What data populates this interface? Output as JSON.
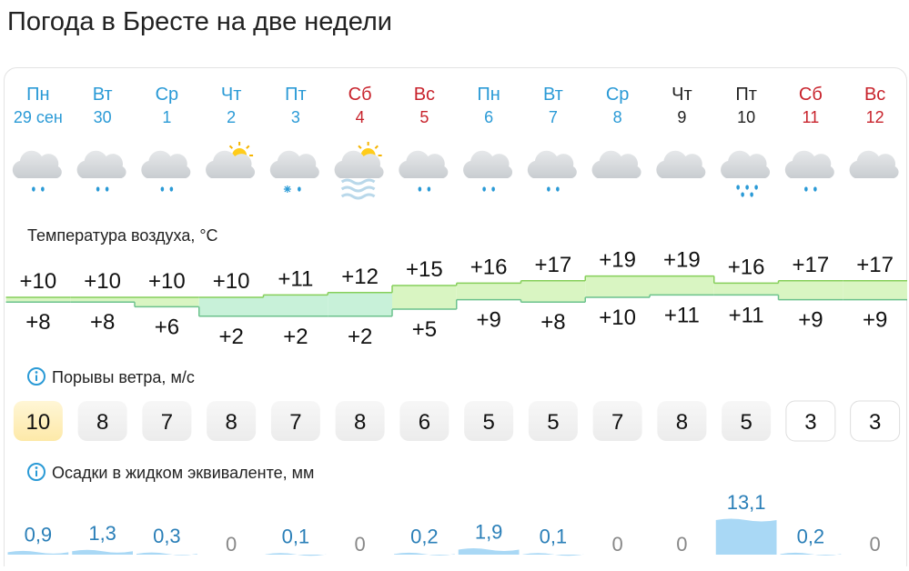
{
  "title": "Погода в Бресте на две недели",
  "days": [
    {
      "weekday": "Пн",
      "date": "29 сен",
      "color": "#2a9ad6"
    },
    {
      "weekday": "Вт",
      "date": "30",
      "color": "#2a9ad6"
    },
    {
      "weekday": "Ср",
      "date": "1",
      "color": "#2a9ad6"
    },
    {
      "weekday": "Чт",
      "date": "2",
      "color": "#2a9ad6"
    },
    {
      "weekday": "Пт",
      "date": "3",
      "color": "#2a9ad6"
    },
    {
      "weekday": "Сб",
      "date": "4",
      "color": "#c8232c"
    },
    {
      "weekday": "Вс",
      "date": "5",
      "color": "#c8232c"
    },
    {
      "weekday": "Пн",
      "date": "6",
      "color": "#2a9ad6"
    },
    {
      "weekday": "Вт",
      "date": "7",
      "color": "#2a9ad6"
    },
    {
      "weekday": "Ср",
      "date": "8",
      "color": "#2a9ad6"
    },
    {
      "weekday": "Чт",
      "date": "9",
      "color": "#222222"
    },
    {
      "weekday": "Пт",
      "date": "10",
      "color": "#222222"
    },
    {
      "weekday": "Сб",
      "date": "11",
      "color": "#c8232c"
    },
    {
      "weekday": "Вс",
      "date": "12",
      "color": "#c8232c"
    }
  ],
  "temperature": {
    "label": "Температура воздуха, °C",
    "max": [
      10,
      10,
      10,
      10,
      11,
      12,
      15,
      16,
      17,
      19,
      19,
      16,
      17,
      17
    ],
    "max_labels": [
      "+10",
      "+10",
      "+10",
      "+10",
      "+11",
      "+12",
      "+15",
      "+16",
      "+17",
      "+19",
      "+19",
      "+16",
      "+17",
      "+17"
    ],
    "min": [
      8,
      8,
      6,
      2,
      2,
      2,
      5,
      9,
      8,
      10,
      11,
      11,
      9,
      9
    ],
    "min_labels": [
      "+8",
      "+8",
      "+6",
      "+2",
      "+2",
      "+2",
      "+5",
      "+9",
      "+8",
      "+10",
      "+11",
      "+11",
      "+9",
      "+9"
    ]
  },
  "wind": {
    "label": "Порывы ветра, м/с",
    "values": [
      10,
      8,
      7,
      8,
      7,
      8,
      6,
      5,
      5,
      7,
      8,
      5,
      3,
      3
    ]
  },
  "precipitation": {
    "label": "Осадки в жидком эквиваленте, мм",
    "values": [
      0.9,
      1.3,
      0.3,
      0,
      0.1,
      0,
      0.2,
      1.9,
      0.1,
      0,
      0,
      13.1,
      0.2,
      0
    ],
    "value_labels": [
      "0,9",
      "1,3",
      "0,3",
      "0",
      "0,1",
      "0",
      "0,2",
      "1,9",
      "0,1",
      "0",
      "0",
      "13,1",
      "0,2",
      "0"
    ]
  }
}
